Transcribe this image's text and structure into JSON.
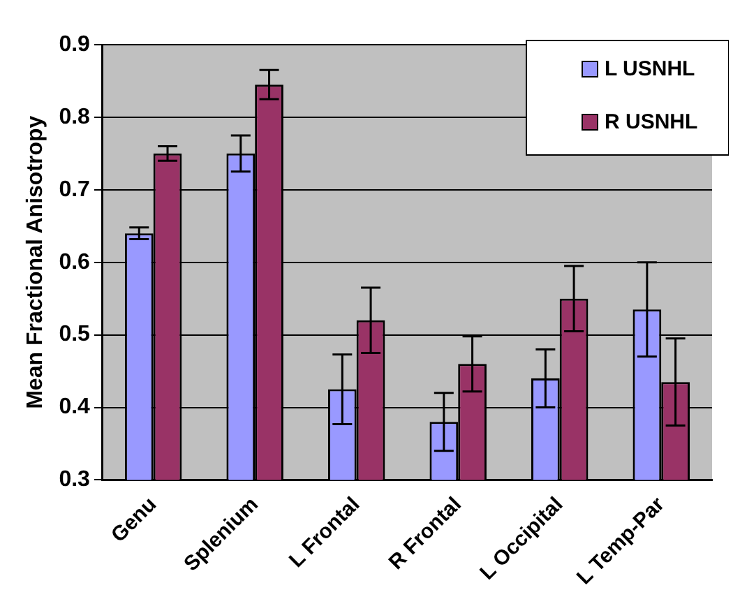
{
  "chart_data": {
    "type": "bar",
    "ylabel": "Mean Fractional Anisotropy",
    "categories": [
      "Genu",
      "Splenium",
      "L Frontal",
      "R Frontal",
      "L Occipital",
      "L Temp-Par"
    ],
    "series": [
      {
        "name": "L USNHL",
        "color": "#9999ff",
        "values": [
          0.64,
          0.75,
          0.425,
          0.38,
          0.44,
          0.535
        ],
        "errors": [
          0.008,
          0.025,
          0.048,
          0.04,
          0.04,
          0.065
        ]
      },
      {
        "name": "R USNHL",
        "color": "#993366",
        "values": [
          0.75,
          0.845,
          0.52,
          0.46,
          0.55,
          0.435
        ],
        "errors": [
          0.01,
          0.02,
          0.045,
          0.038,
          0.045,
          0.06
        ]
      }
    ],
    "ylim": [
      0.3,
      0.9
    ],
    "yticks": [
      0.3,
      0.4,
      0.5,
      0.6,
      0.7,
      0.8,
      0.9
    ],
    "grid": "y",
    "legend": "top right"
  }
}
